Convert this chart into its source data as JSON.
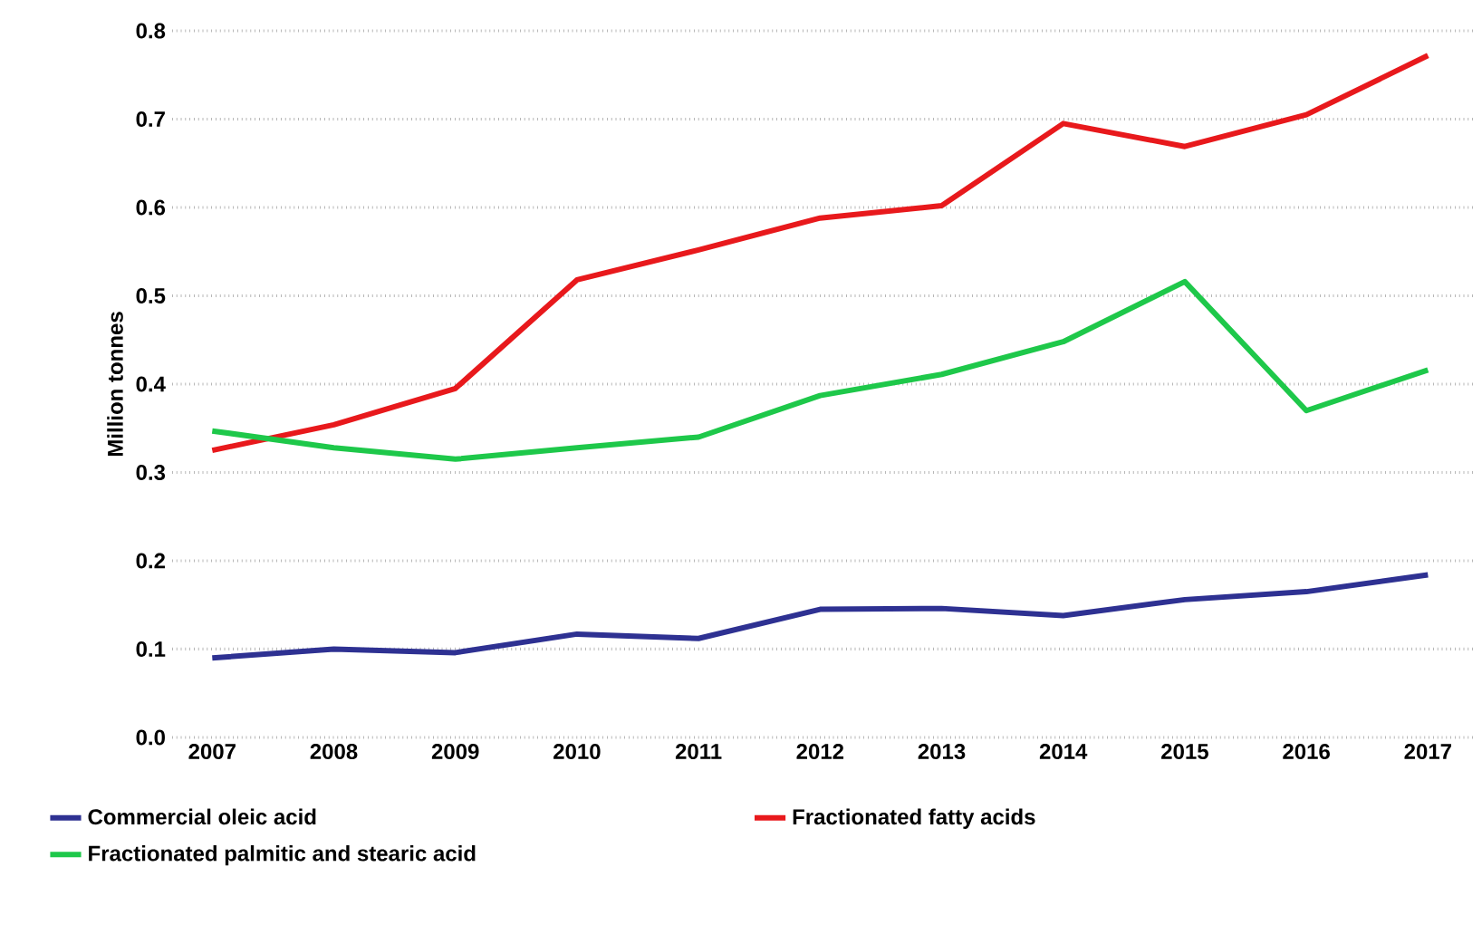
{
  "chart_data": {
    "type": "line",
    "ylabel": "Million tonnes",
    "categories": [
      "2007",
      "2008",
      "2009",
      "2010",
      "2011",
      "2012",
      "2013",
      "2014",
      "2015",
      "2016",
      "2017"
    ],
    "series": [
      {
        "name": "Commercial oleic acid",
        "color": "#2e3192",
        "values": [
          0.09,
          0.1,
          0.096,
          0.117,
          0.112,
          0.145,
          0.146,
          0.138,
          0.156,
          0.165,
          0.184
        ]
      },
      {
        "name": "Fractionated fatty acids",
        "color": "#e8191c",
        "values": [
          0.325,
          0.354,
          0.395,
          0.518,
          0.552,
          0.588,
          0.602,
          0.695,
          0.669,
          0.705,
          0.772
        ]
      },
      {
        "name": "Fractionated palmitic and stearic acid",
        "color": "#1ec84a",
        "values": [
          0.347,
          0.328,
          0.315,
          0.328,
          0.34,
          0.387,
          0.411,
          0.448,
          0.516,
          0.37,
          0.416
        ]
      }
    ],
    "ylim": [
      0,
      0.8
    ],
    "yticks": [
      {
        "value": 0,
        "label": "0.0"
      },
      {
        "value": 0.1,
        "label": "0.1"
      },
      {
        "value": 0.2,
        "label": "0.2"
      },
      {
        "value": 0.3,
        "label": "0.3"
      },
      {
        "value": 0.4,
        "label": "0.4"
      },
      {
        "value": 0.5,
        "label": "0.5"
      },
      {
        "value": 0.6,
        "label": "0.6"
      },
      {
        "value": 0.7,
        "label": "0.7"
      },
      {
        "value": 0.8,
        "label": "0.8"
      }
    ],
    "grid": "y",
    "legend": "bottom"
  }
}
